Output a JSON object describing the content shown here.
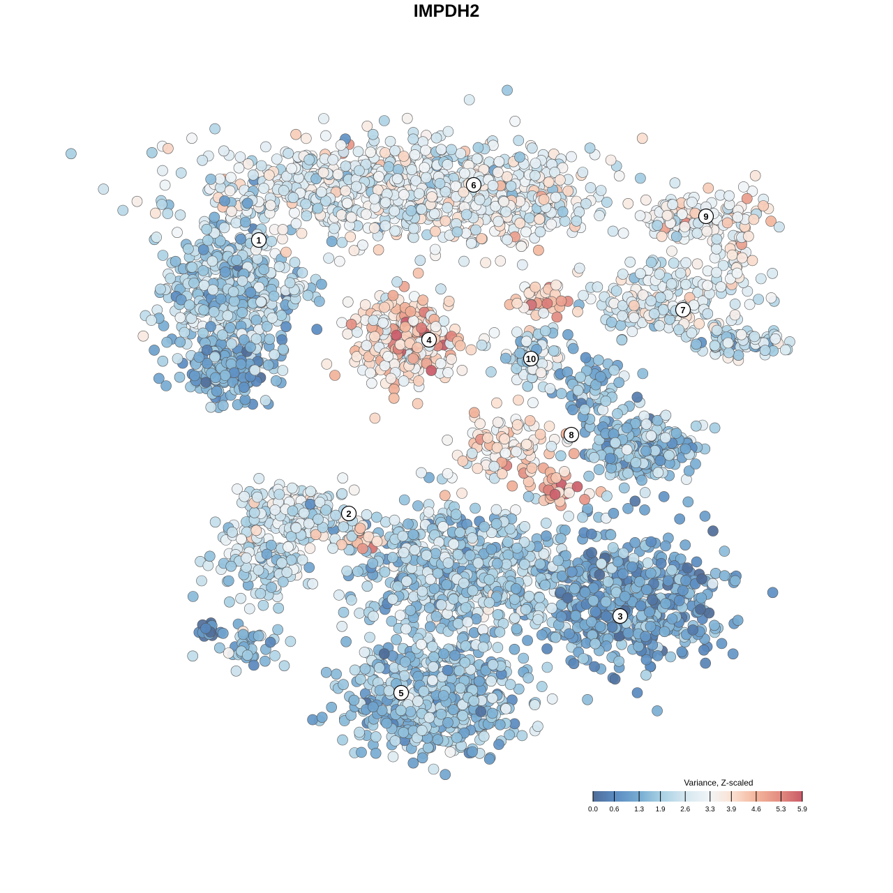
{
  "chart_data": {
    "type": "scatter",
    "title": "IMPDH2",
    "xlabel": "",
    "ylabel": "",
    "xlim": [
      -46,
      46
    ],
    "ylim": [
      -46,
      46
    ],
    "grid": false,
    "note": "points are generated from cluster blobs (center, spread, count, mean value) in embedding units",
    "clusters": [
      {
        "label": "1",
        "blobs": [
          {
            "cx": -33.5,
            "cy": 21.5,
            "sx": 6,
            "sy": 7,
            "n": 500,
            "mean": 2.0
          },
          {
            "cx": -33.5,
            "cy": 10.5,
            "sx": 4,
            "sy": 3,
            "n": 150,
            "mean": 1.2
          }
        ],
        "label_pos": [
          -29.4,
          29.1
        ]
      },
      {
        "label": "2",
        "blobs": [
          {
            "cx": -24.5,
            "cy": -10.5,
            "sx": 6,
            "sy": 3,
            "n": 200,
            "mean": 2.6
          },
          {
            "cx": -28.5,
            "cy": -17.5,
            "sx": 4,
            "sy": 3,
            "n": 100,
            "mean": 2.4
          },
          {
            "cx": -30.5,
            "cy": -29.5,
            "sx": 3,
            "sy": 2,
            "n": 40,
            "mean": 1.6
          },
          {
            "cx": -36.5,
            "cy": -27,
            "sx": 1,
            "sy": 1,
            "n": 15,
            "mean": 0.6
          }
        ],
        "label_pos": [
          -16.5,
          -10.1
        ]
      },
      {
        "label": "3",
        "blobs": [
          {
            "cx": 23.5,
            "cy": -22.5,
            "sx": 8,
            "sy": 6,
            "n": 500,
            "mean": 1.1
          }
        ],
        "label_pos": [
          22.4,
          -24.8
        ]
      },
      {
        "label": "4",
        "blobs": [
          {
            "cx": -8.5,
            "cy": 14.5,
            "sx": 5,
            "sy": 4,
            "n": 250,
            "mean": 3.8
          },
          {
            "cx": -6.5,
            "cy": 15.5,
            "sx": 2,
            "sy": 2.5,
            "n": 40,
            "mean": 5.4
          }
        ],
        "label_pos": [
          -5,
          14.8
        ]
      },
      {
        "label": "5",
        "blobs": [
          {
            "cx": -4.5,
            "cy": -36.5,
            "sx": 8,
            "sy": 5,
            "n": 500,
            "mean": 1.7
          },
          {
            "cx": -0.5,
            "cy": -18.5,
            "sx": 10,
            "sy": 6,
            "n": 600,
            "mean": 2.0
          },
          {
            "cx": 14.5,
            "cy": -7,
            "sx": 3,
            "sy": 1.5,
            "n": 30,
            "mean": 4.7
          },
          {
            "cx": -14.5,
            "cy": -14,
            "sx": 1.5,
            "sy": 1,
            "n": 20,
            "mean": 4.3
          }
        ],
        "label_pos": [
          -9,
          -35.8
        ]
      },
      {
        "label": "6",
        "blobs": [
          {
            "cx": -10.5,
            "cy": 36.5,
            "sx": 17,
            "sy": 4.5,
            "n": 700,
            "mean": 2.9
          },
          {
            "cx": 5.5,
            "cy": 34.5,
            "sx": 8,
            "sy": 3.5,
            "n": 200,
            "mean": 3.2
          }
        ],
        "label_pos": [
          1.4,
          37
        ]
      },
      {
        "label": "7",
        "blobs": [
          {
            "cx": 29.5,
            "cy": 20.5,
            "sx": 7,
            "sy": 3.5,
            "n": 200,
            "mean": 2.8
          },
          {
            "cx": 40.5,
            "cy": 14.5,
            "sx": 4,
            "sy": 1.5,
            "n": 80,
            "mean": 2.3
          }
        ],
        "label_pos": [
          31.4,
          19.1
        ]
      },
      {
        "label": "8",
        "blobs": [
          {
            "cx": 25.5,
            "cy": -0.5,
            "sx": 5,
            "sy": 3,
            "n": 200,
            "mean": 1.8
          },
          {
            "cx": 6.5,
            "cy": -0.5,
            "sx": 5,
            "sy": 3,
            "n": 100,
            "mean": 3.9
          },
          {
            "cx": 18.5,
            "cy": 7.5,
            "sx": 3,
            "sy": 4,
            "n": 80,
            "mean": 1.8
          }
        ],
        "label_pos": [
          15.4,
          1.2
        ]
      },
      {
        "label": "9",
        "blobs": [
          {
            "cx": 33.5,
            "cy": 32.5,
            "sx": 6,
            "sy": 2.5,
            "n": 150,
            "mean": 3.2
          },
          {
            "cx": 39.5,
            "cy": 26.5,
            "sx": 1,
            "sy": 3,
            "n": 20,
            "mean": 3.9
          }
        ],
        "label_pos": [
          34.7,
          32.5
        ]
      },
      {
        "label": "10",
        "blobs": [
          {
            "cx": 9.5,
            "cy": 12.5,
            "sx": 2.5,
            "sy": 3,
            "n": 80,
            "mean": 2.5
          },
          {
            "cx": 11.5,
            "cy": 20.5,
            "sx": 3,
            "sy": 1.5,
            "n": 40,
            "mean": 4.2
          }
        ],
        "label_pos": [
          9.6,
          12.1
        ]
      }
    ],
    "legend": {
      "title": "Variance, Z-scaled",
      "position": "bottom-right",
      "ticks": [
        "0.0",
        "0.6",
        "1.3",
        "1.9",
        "2.6",
        "3.3",
        "3.9",
        "4.6",
        "5.3",
        "5.9"
      ],
      "range": [
        0,
        5.9
      ]
    },
    "colorscale": [
      {
        "v": 0.0,
        "c": "#4f6d98"
      },
      {
        "v": 0.6,
        "c": "#5a8bc1"
      },
      {
        "v": 1.3,
        "c": "#77acd2"
      },
      {
        "v": 1.9,
        "c": "#a6cfe3"
      },
      {
        "v": 2.6,
        "c": "#d5e7f0"
      },
      {
        "v": 3.3,
        "c": "#f2f5f7"
      },
      {
        "v": 3.9,
        "c": "#fbe2d4"
      },
      {
        "v": 4.6,
        "c": "#f3b59b"
      },
      {
        "v": 5.3,
        "c": "#e28a80"
      },
      {
        "v": 5.9,
        "c": "#c95a68"
      }
    ]
  }
}
